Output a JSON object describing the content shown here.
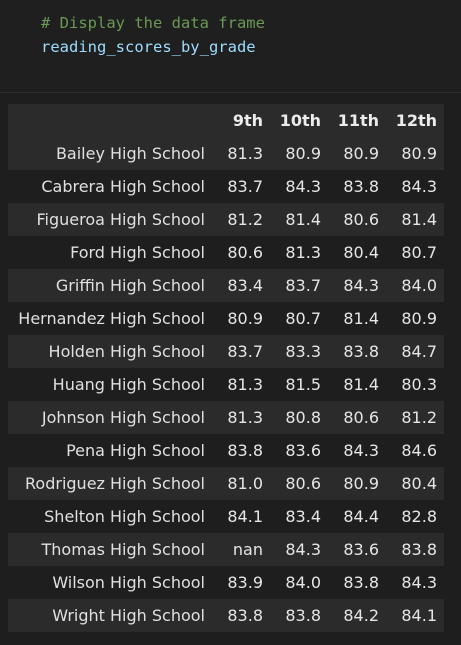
{
  "code": {
    "comment": "# Display the data frame",
    "variable": "reading_scores_by_grade"
  },
  "table": {
    "columns": [
      "",
      "9th",
      "10th",
      "11th",
      "12th"
    ],
    "rows": [
      {
        "school": "Bailey High School",
        "values": [
          "81.3",
          "80.9",
          "80.9",
          "80.9"
        ]
      },
      {
        "school": "Cabrera High School",
        "values": [
          "83.7",
          "84.3",
          "83.8",
          "84.3"
        ]
      },
      {
        "school": "Figueroa High School",
        "values": [
          "81.2",
          "81.4",
          "80.6",
          "81.4"
        ]
      },
      {
        "school": "Ford High School",
        "values": [
          "80.6",
          "81.3",
          "80.4",
          "80.7"
        ]
      },
      {
        "school": "Griffin High School",
        "values": [
          "83.4",
          "83.7",
          "84.3",
          "84.0"
        ]
      },
      {
        "school": "Hernandez High School",
        "values": [
          "80.9",
          "80.7",
          "81.4",
          "80.9"
        ]
      },
      {
        "school": "Holden High School",
        "values": [
          "83.7",
          "83.3",
          "83.8",
          "84.7"
        ]
      },
      {
        "school": "Huang High School",
        "values": [
          "81.3",
          "81.5",
          "81.4",
          "80.3"
        ]
      },
      {
        "school": "Johnson High School",
        "values": [
          "81.3",
          "80.8",
          "80.6",
          "81.2"
        ]
      },
      {
        "school": "Pena High School",
        "values": [
          "83.8",
          "83.6",
          "84.3",
          "84.6"
        ]
      },
      {
        "school": "Rodriguez High School",
        "values": [
          "81.0",
          "80.6",
          "80.9",
          "80.4"
        ]
      },
      {
        "school": "Shelton High School",
        "values": [
          "84.1",
          "83.4",
          "84.4",
          "82.8"
        ]
      },
      {
        "school": "Thomas High School",
        "values": [
          "nan",
          "84.3",
          "83.6",
          "83.8"
        ]
      },
      {
        "school": "Wilson High School",
        "values": [
          "83.9",
          "84.0",
          "83.8",
          "84.3"
        ]
      },
      {
        "school": "Wright High School",
        "values": [
          "83.8",
          "83.8",
          "84.2",
          "84.1"
        ]
      }
    ]
  }
}
